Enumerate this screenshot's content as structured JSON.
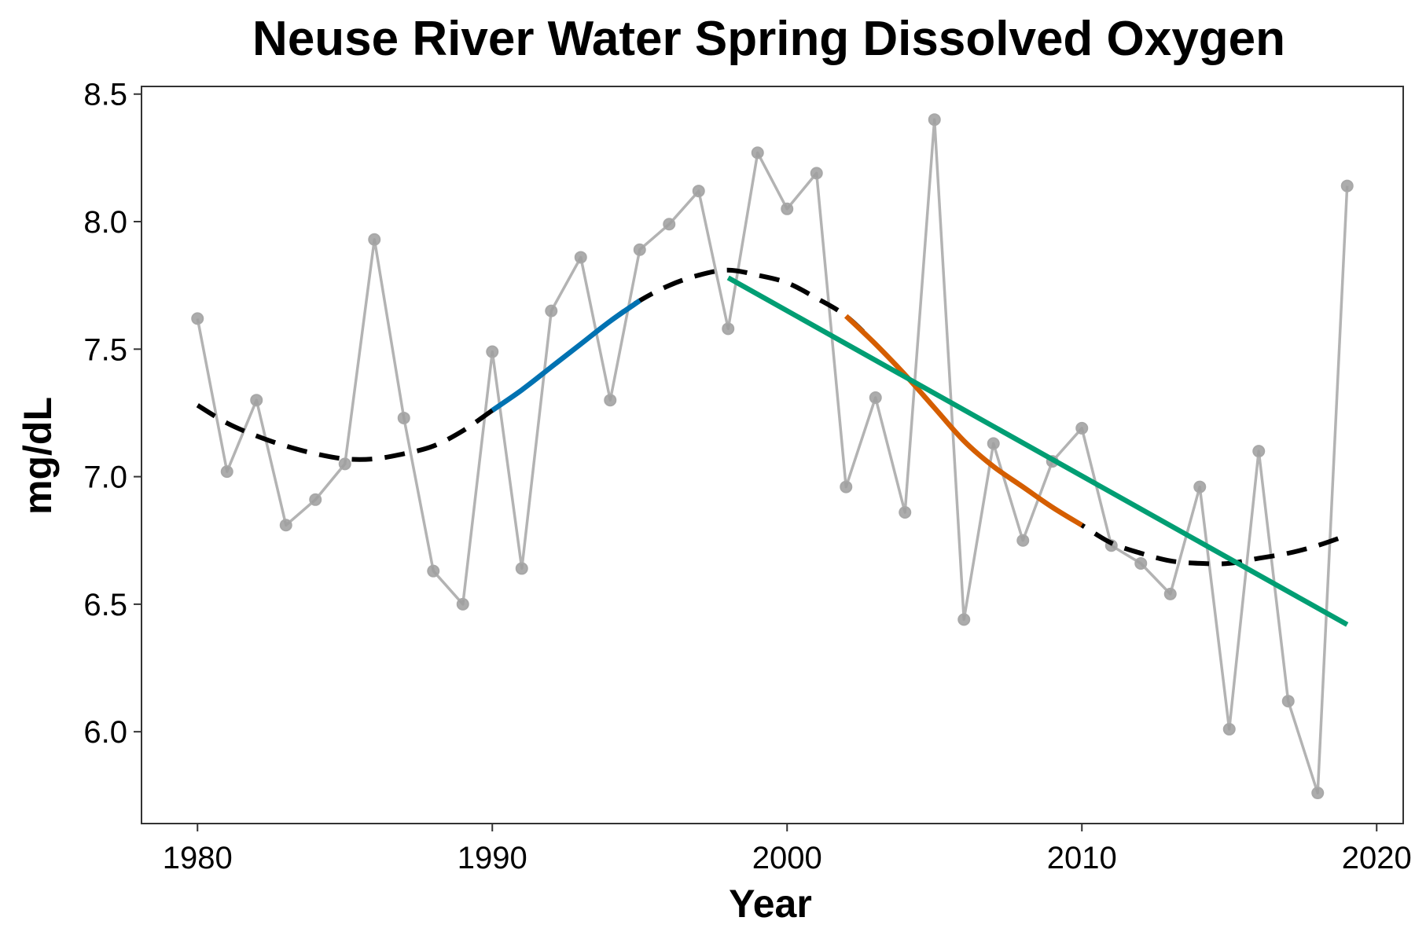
{
  "chart_data": {
    "type": "line",
    "title": "Neuse River Water Spring Dissolved Oxygen",
    "xlabel": "Year",
    "ylabel": "mg/dL",
    "xlim": [
      1978.1,
      2020.9
    ],
    "ylim": [
      5.64,
      8.53
    ],
    "x_ticks": [
      1980,
      1990,
      2000,
      2010,
      2020
    ],
    "x_tick_labels": [
      "1980",
      "1990",
      "2000",
      "2010",
      "2020"
    ],
    "y_ticks": [
      6.0,
      6.5,
      7.0,
      7.5,
      8.0,
      8.5
    ],
    "y_tick_labels": [
      "6.0",
      "6.5",
      "7.0",
      "7.5",
      "8.0",
      "8.5"
    ],
    "grid": false,
    "legend": "none",
    "colors": {
      "observed": "#b3b3b3",
      "smooth": "#000000",
      "increase": "#0072b2",
      "decrease": "#d55e00",
      "trend": "#009e73"
    },
    "series": [
      {
        "role": "observed",
        "x": [
          1980,
          1981,
          1982,
          1983,
          1984,
          1985,
          1986,
          1987,
          1988,
          1989,
          1990,
          1991,
          1992,
          1993,
          1994,
          1995,
          1996,
          1997,
          1998,
          1999,
          2000,
          2001,
          2002,
          2003,
          2004,
          2005,
          2006,
          2007,
          2008,
          2009,
          2010,
          2011,
          2012,
          2013,
          2014,
          2015,
          2016,
          2017,
          2018,
          2019
        ],
        "y": [
          7.62,
          7.02,
          7.3,
          6.81,
          6.91,
          7.05,
          7.93,
          7.23,
          6.63,
          6.5,
          7.49,
          6.64,
          7.65,
          7.86,
          7.3,
          7.89,
          7.99,
          8.12,
          7.58,
          8.27,
          8.05,
          8.19,
          6.96,
          7.31,
          6.86,
          8.4,
          6.44,
          7.13,
          6.75,
          7.06,
          7.19,
          6.73,
          6.66,
          6.54,
          6.96,
          6.01,
          7.1,
          6.12,
          5.76,
          8.14
        ]
      },
      {
        "role": "smooth",
        "x": [
          1980,
          1981,
          1982,
          1983,
          1984,
          1985,
          1986,
          1987,
          1988,
          1989,
          1990,
          1991,
          1992,
          1993,
          1994,
          1995,
          1996,
          1997,
          1998,
          1999,
          2000,
          2001,
          2002,
          2003,
          2004,
          2005,
          2006,
          2007,
          2008,
          2009,
          2010,
          2011,
          2012,
          2013,
          2014,
          2015,
          2016,
          2017,
          2018,
          2019
        ],
        "y": [
          7.28,
          7.21,
          7.16,
          7.12,
          7.09,
          7.07,
          7.07,
          7.09,
          7.12,
          7.18,
          7.26,
          7.34,
          7.43,
          7.52,
          7.61,
          7.69,
          7.75,
          7.79,
          7.81,
          7.79,
          7.76,
          7.7,
          7.63,
          7.52,
          7.4,
          7.27,
          7.14,
          7.04,
          6.96,
          6.88,
          6.81,
          6.74,
          6.7,
          6.67,
          6.66,
          6.66,
          6.68,
          6.7,
          6.73,
          6.77
        ]
      },
      {
        "role": "increase",
        "x_range": [
          1990,
          1995
        ]
      },
      {
        "role": "decrease",
        "x_range": [
          2002,
          2010
        ]
      },
      {
        "role": "trend",
        "x": [
          1998,
          2019
        ],
        "y": [
          7.78,
          6.42
        ]
      }
    ]
  }
}
